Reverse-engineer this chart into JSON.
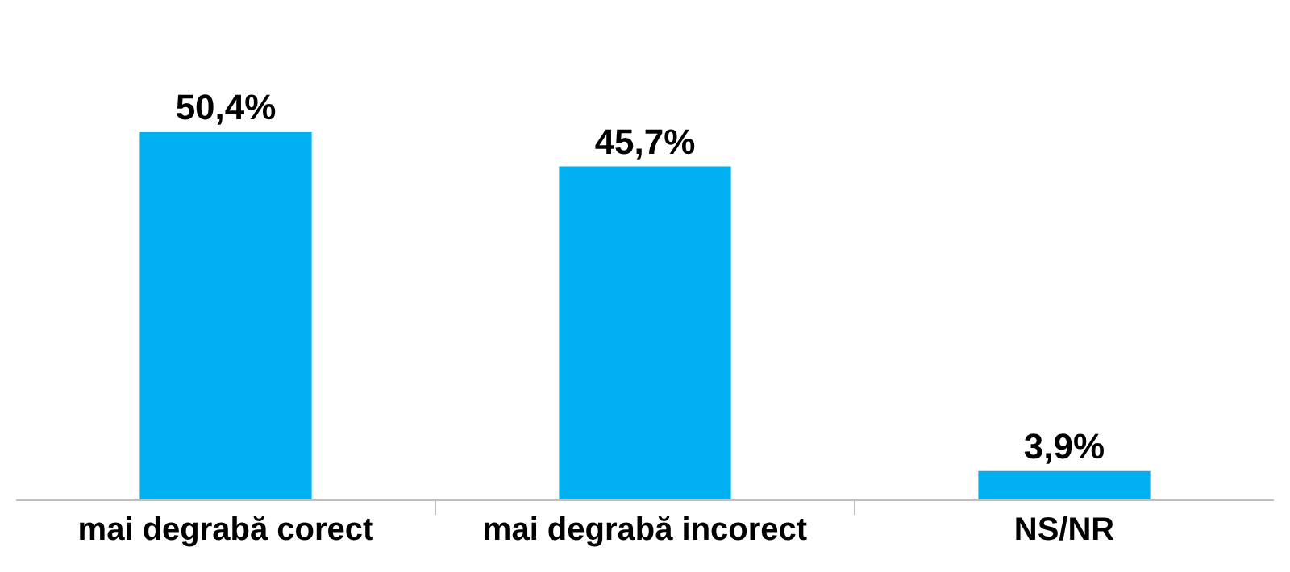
{
  "chart_data": {
    "type": "bar",
    "categories": [
      "mai degrabă corect",
      "mai degrabă incorect",
      "NS/NR"
    ],
    "values": [
      50.4,
      45.7,
      3.9
    ],
    "value_labels": [
      "50,4%",
      "45,7%",
      "3,9%"
    ],
    "color": "#00b0f0",
    "legend": false
  }
}
